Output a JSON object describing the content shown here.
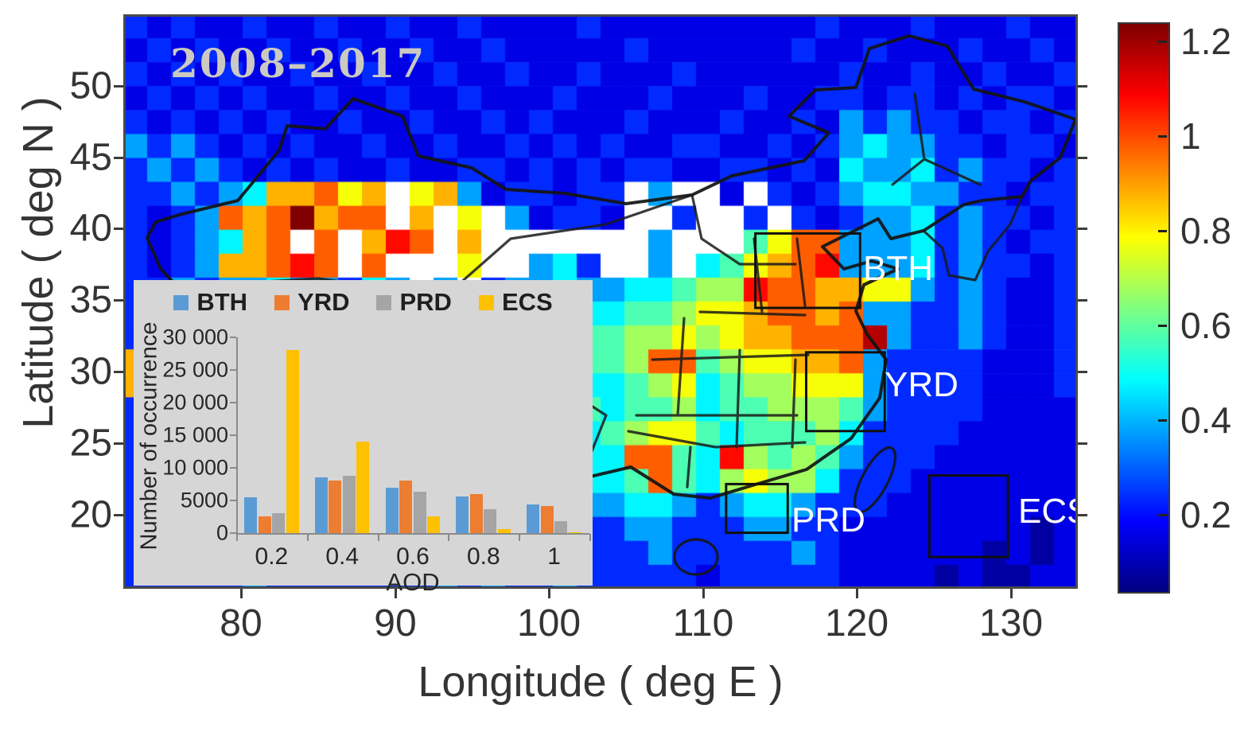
{
  "figure": {
    "title": "2008–2017",
    "xlabel": "Longitude ( deg E )",
    "ylabel": "Latitude ( deg N )",
    "x_tick_labels": [
      "80",
      "90",
      "100",
      "110",
      "120",
      "130"
    ],
    "y_tick_labels": [
      "50",
      "45",
      "40",
      "35",
      "30",
      "25",
      "20"
    ]
  },
  "colorbar": {
    "colormap": "jet",
    "value_range": [
      0.04,
      1.24
    ],
    "tick_labels": [
      "1.2",
      "1",
      "0.8",
      "0.6",
      "0.4",
      "0.2"
    ],
    "tick_values": [
      1.2,
      1.0,
      0.8,
      0.6,
      0.4,
      0.2
    ]
  },
  "map_annotations": {
    "regions": [
      {
        "name": "BTH",
        "lon": [
          113.4,
          120.2
        ],
        "lat": [
          34.5,
          39.7
        ]
      },
      {
        "name": "YRD",
        "lon": [
          116.7,
          121.8
        ],
        "lat": [
          25.9,
          31.4
        ]
      },
      {
        "name": "PRD",
        "lon": [
          111.5,
          115.5
        ],
        "lat": [
          18.8,
          22.2
        ]
      },
      {
        "name": "ECS",
        "lon": [
          124.7,
          129.8
        ],
        "lat": [
          17.1,
          22.8
        ]
      }
    ]
  },
  "chart_data": [
    {
      "type": "heatmap",
      "title": "2008–2017",
      "xlabel": "Longitude ( deg E )",
      "ylabel": "Latitude ( deg N )",
      "value_name": "AOD",
      "x_range": [
        72.4,
        134.3
      ],
      "y_range": [
        15,
        55
      ],
      "x_ticks": [
        80,
        90,
        100,
        110,
        120,
        130
      ],
      "y_ticks": [
        50,
        45,
        40,
        35,
        30,
        25,
        20
      ],
      "colormap": "jet",
      "value_range": [
        0.04,
        1.24
      ],
      "grid_note": "each character is one ~1.55deg x 1.67deg cell, row 0 = north (lat 55) to row 23 = south (lat 15), col 0 = lon 72.4; '.' = missing data (white)",
      "levels": {
        ".": null,
        "0": 0.08,
        "1": 0.16,
        "2": 0.24,
        "3": 0.38,
        "4": 0.48,
        "5": 0.58,
        "6": 0.68,
        "7": 0.78,
        "8": 0.88,
        "9": 0.98,
        "a": 1.08,
        "b": 1.18,
        "c": 1.26
      },
      "grid_rows": [
        "2121121121121121111211111111121112111211",
        "1212112112112112111112111111211211121121",
        "2121211211211211211211121111112112112112",
        "1212121121121121112111211121122122121221",
        "2121212112112112121112111211213232212212",
        "3232121211211211212121122112123433221221",
        "2323212121121122121212211221214334232212",
        "22323488978.783122122.3..1.2123443322122",
        "2123989c899.8.7.31221..2..2.212334232212",
        "2123489.9.8a9.8.......3...57993334232122",
        "2123889a9.9...7..342..3.45789a3334232212",
        "223233433243.3.23343344566a9988773232112",
        "2223233323333433445445567789989332232112",
        "2232232233233343344556676788999b32232112",
        "8923232233334433445556995677889322221112",
        "8233223233334334454445674566777322221112",
        "2332232323343444554545564556665322221111",
        "2323323232344445545456775455564222211111",
        "223323232334455445444995 4a65653222111111",
        "2232323232344445445445954676642221111111",
        "2223232322334344344334432344322211111111",
        "2232232232233343343223322233221111111101",
        "2222322322223332332222322222321111110101",
        "2222232222222323223222221222221111010011"
      ]
    },
    {
      "type": "bar",
      "categories": [
        "0.2",
        "0.4",
        "0.6",
        "0.8",
        "1"
      ],
      "series": [
        {
          "name": "BTH",
          "color": "#5B9BD5",
          "values": [
            5500,
            8500,
            7000,
            5600,
            4400
          ]
        },
        {
          "name": "YRD",
          "color": "#ED7D31",
          "values": [
            2500,
            8000,
            8000,
            6000,
            4200
          ]
        },
        {
          "name": "PRD",
          "color": "#A5A5A5",
          "values": [
            3000,
            8800,
            6300,
            3600,
            1800
          ]
        },
        {
          "name": "ECS",
          "color": "#FFC000",
          "values": [
            28000,
            14000,
            2500,
            600,
            100
          ]
        }
      ],
      "xlabel": "AOD",
      "ylabel": "Number of occurrence",
      "ylim": [
        0,
        30000
      ],
      "ytick_step": 5000,
      "y_tick_labels": [
        "0",
        "5000",
        "10 000",
        "15 000",
        "20 000",
        "25 000",
        "30 000"
      ],
      "legend_position": "top",
      "grid": false,
      "background": "#d6d6d6"
    }
  ]
}
